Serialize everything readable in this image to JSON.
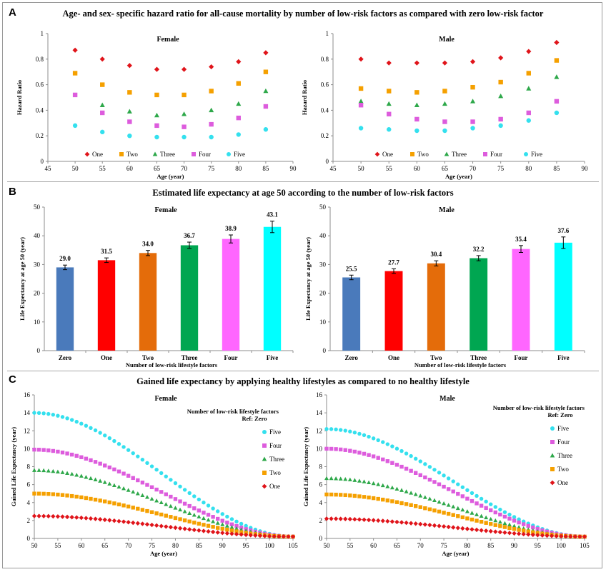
{
  "panels": {
    "A": {
      "letter": "A",
      "title": "Age- and sex- specific hazard ratio for all-cause mortality by number of low-risk factors as compared with zero low-risk factor"
    },
    "B": {
      "letter": "B",
      "title": "Estimated life expectancy at age 50 according to the number of low-risk factors"
    },
    "C": {
      "letter": "C",
      "title": "Gained life expectancy by applying healthy lifestyles as compared to no healthy lifestyle"
    }
  },
  "colors": {
    "one": "#e0141a",
    "two": "#f5a000",
    "three": "#2ea84a",
    "four": "#dd5cdd",
    "five": "#34e0ee",
    "zero_bar": "#4a7abb",
    "one_bar": "#ff0000",
    "two_bar": "#e46c0a",
    "three_bar": "#00a651",
    "four_bar": "#ff66ff",
    "five_bar": "#00ffff"
  },
  "chart_data": [
    {
      "id": "hr_female",
      "panel": "A",
      "type": "scatter",
      "title": "Female",
      "xlabel": "Age (year)",
      "ylabel": "Hazard Ratio",
      "xlim": [
        45,
        90
      ],
      "xticks": [
        45,
        50,
        55,
        60,
        65,
        70,
        75,
        80,
        85,
        90
      ],
      "ylim": [
        0,
        1
      ],
      "yticks": [
        0,
        0.2,
        0.4,
        0.6,
        0.8,
        1
      ],
      "ytick_labels": [
        "0",
        "0.2",
        "0.4",
        "0.6",
        "0.8",
        "1"
      ],
      "x": [
        50,
        55,
        60,
        65,
        70,
        75,
        80,
        85
      ],
      "legend": "bottom",
      "series": [
        {
          "name": "One",
          "marker": "diamond",
          "color": "#e0141a",
          "values": [
            0.87,
            0.8,
            0.75,
            0.72,
            0.72,
            0.74,
            0.78,
            0.85
          ]
        },
        {
          "name": "Two",
          "marker": "square",
          "color": "#f5a000",
          "values": [
            0.69,
            0.6,
            0.54,
            0.52,
            0.52,
            0.55,
            0.61,
            0.7
          ]
        },
        {
          "name": "Three",
          "marker": "triangle",
          "color": "#2ea84a",
          "values": [
            null,
            0.44,
            0.39,
            0.36,
            0.37,
            0.4,
            0.45,
            0.55
          ]
        },
        {
          "name": "Four",
          "marker": "square",
          "color": "#dd5cdd",
          "values": [
            0.52,
            0.38,
            0.31,
            0.28,
            0.27,
            0.29,
            0.34,
            0.43
          ]
        },
        {
          "name": "Five",
          "marker": "circle",
          "color": "#34e0ee",
          "values": [
            0.28,
            0.23,
            0.2,
            0.19,
            0.19,
            0.19,
            0.21,
            0.25
          ]
        }
      ]
    },
    {
      "id": "hr_male",
      "panel": "A",
      "type": "scatter",
      "title": "Male",
      "xlabel": "Age (year)",
      "ylabel": "Hazard Ratio",
      "xlim": [
        45,
        90
      ],
      "xticks": [
        45,
        50,
        55,
        60,
        65,
        70,
        75,
        80,
        85,
        90
      ],
      "ylim": [
        0,
        1
      ],
      "yticks": [
        0,
        0.2,
        0.4,
        0.6,
        0.8,
        1
      ],
      "ytick_labels": [
        "0",
        "0.2",
        "0.4",
        "0.6",
        "0.8",
        "1"
      ],
      "x": [
        50,
        55,
        60,
        65,
        70,
        75,
        80,
        85
      ],
      "legend": "bottom",
      "series": [
        {
          "name": "One",
          "marker": "diamond",
          "color": "#e0141a",
          "values": [
            0.8,
            0.77,
            0.77,
            0.77,
            0.78,
            0.81,
            0.86,
            0.93
          ]
        },
        {
          "name": "Two",
          "marker": "square",
          "color": "#f5a000",
          "values": [
            0.57,
            0.55,
            0.54,
            0.55,
            0.58,
            0.62,
            0.69,
            0.79
          ]
        },
        {
          "name": "Three",
          "marker": "triangle",
          "color": "#2ea84a",
          "values": [
            0.47,
            0.45,
            0.44,
            0.45,
            0.47,
            0.51,
            0.57,
            0.66
          ]
        },
        {
          "name": "Four",
          "marker": "square",
          "color": "#dd5cdd",
          "values": [
            0.44,
            0.37,
            0.33,
            0.31,
            0.31,
            0.33,
            0.38,
            0.47
          ]
        },
        {
          "name": "Five",
          "marker": "circle",
          "color": "#34e0ee",
          "values": [
            0.26,
            0.25,
            0.24,
            0.24,
            0.26,
            0.28,
            0.32,
            0.38
          ]
        }
      ]
    },
    {
      "id": "le_female",
      "panel": "B",
      "type": "bar",
      "title": "Female",
      "xlabel": "Number  of low-risk  lifestyle factors",
      "ylabel": "Life Expectancy at age 50 (year)",
      "ylim": [
        0,
        50
      ],
      "yticks": [
        0,
        10,
        20,
        30,
        40,
        50
      ],
      "categories": [
        "Zero",
        "One",
        "Two",
        "Three",
        "Four",
        "Five"
      ],
      "values": [
        29.0,
        31.5,
        34.0,
        36.7,
        38.9,
        43.1
      ],
      "value_labels": [
        "29.0",
        "31.5",
        "34.0",
        "36.7",
        "38.9",
        "43.1"
      ],
      "errors": [
        0.8,
        0.8,
        0.9,
        1.1,
        1.4,
        2.0
      ],
      "colors": [
        "#4a7abb",
        "#ff0000",
        "#e46c0a",
        "#00a651",
        "#ff66ff",
        "#00ffff"
      ]
    },
    {
      "id": "le_male",
      "panel": "B",
      "type": "bar",
      "title": "Male",
      "xlabel": "Number  of low-risk  lifestyle factors",
      "ylabel": "Life Expectancy at age 50 (year)",
      "ylim": [
        0,
        50
      ],
      "yticks": [
        0,
        10,
        20,
        30,
        40,
        50
      ],
      "categories": [
        "Zero",
        "One",
        "Two",
        "Three",
        "Four",
        "Five"
      ],
      "values": [
        25.5,
        27.7,
        30.4,
        32.2,
        35.4,
        37.6
      ],
      "value_labels": [
        "25.5",
        "27.7",
        "30.4",
        "32.2",
        "35.4",
        "37.6"
      ],
      "errors": [
        0.8,
        0.8,
        0.9,
        0.9,
        1.2,
        2.0
      ],
      "colors": [
        "#4a7abb",
        "#ff0000",
        "#e46c0a",
        "#00a651",
        "#ff66ff",
        "#00ffff"
      ]
    },
    {
      "id": "gain_female",
      "panel": "C",
      "type": "scatter",
      "title": "Female",
      "xlabel": "Age (year)",
      "ylabel": "Gained Life Expectancy (year)",
      "xlim": [
        50,
        105
      ],
      "xticks": [
        50,
        55,
        60,
        65,
        70,
        75,
        80,
        85,
        90,
        95,
        100,
        105
      ],
      "ylim": [
        0,
        16
      ],
      "yticks": [
        0,
        2,
        4,
        6,
        8,
        10,
        12,
        14,
        16
      ],
      "legend": "right",
      "legend_title": "Number  of low-risk  lifestyle factors",
      "legend_subtitle": "Ref: Zero",
      "series": [
        {
          "name": "Five",
          "marker": "circle",
          "color": "#34e0ee",
          "start_value": 14.0
        },
        {
          "name": "Four",
          "marker": "square",
          "color": "#dd5cdd",
          "start_value": 9.9
        },
        {
          "name": "Three",
          "marker": "triangle",
          "color": "#2ea84a",
          "start_value": 7.6
        },
        {
          "name": "Two",
          "marker": "square",
          "color": "#f5a000",
          "start_value": 5.0
        },
        {
          "name": "One",
          "marker": "diamond",
          "color": "#e0141a",
          "start_value": 2.5
        }
      ],
      "series_points": "one point per year from 50 to 105, each value decreasing smoothly from start_value to about 0.2 at age 105"
    },
    {
      "id": "gain_male",
      "panel": "C",
      "type": "scatter",
      "title": "Male",
      "xlabel": "Age (year)",
      "ylabel": "Gained Life Expectancy (year)",
      "xlim": [
        50,
        105
      ],
      "xticks": [
        50,
        55,
        60,
        65,
        70,
        75,
        80,
        85,
        90,
        95,
        100,
        105
      ],
      "ylim": [
        0,
        16
      ],
      "yticks": [
        0,
        2,
        4,
        6,
        8,
        10,
        12,
        14,
        16
      ],
      "legend": "right",
      "legend_title": "Number  of low-risk  lifestyle factors",
      "legend_subtitle": "Ref: Zero",
      "series": [
        {
          "name": "Five",
          "marker": "circle",
          "color": "#34e0ee",
          "start_value": 12.2
        },
        {
          "name": "Four",
          "marker": "square",
          "color": "#dd5cdd",
          "start_value": 10.0
        },
        {
          "name": "Three",
          "marker": "triangle",
          "color": "#2ea84a",
          "start_value": 6.7
        },
        {
          "name": "Two",
          "marker": "square",
          "color": "#f5a000",
          "start_value": 4.9
        },
        {
          "name": "One",
          "marker": "diamond",
          "color": "#e0141a",
          "start_value": 2.2
        }
      ],
      "series_points": "one point per year from 50 to 105, each value decreasing smoothly from start_value to about 0.2 at age 105"
    }
  ]
}
